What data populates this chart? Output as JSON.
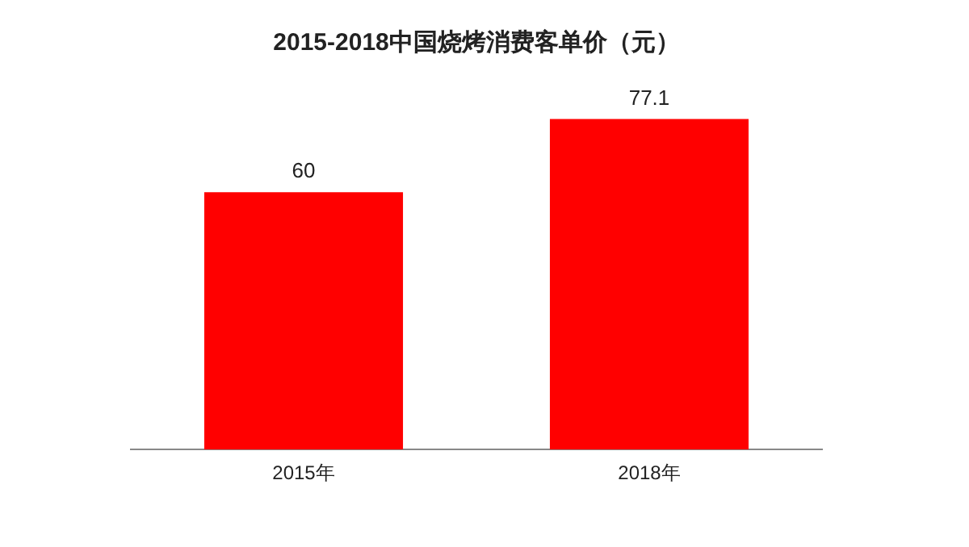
{
  "chart_data": {
    "type": "bar",
    "title": "2015-2018中国烧烤消费客单价（元）",
    "categories": [
      "2015年",
      "2018年"
    ],
    "values": [
      60,
      77.1
    ],
    "color": "#ff0000",
    "data_labels": true,
    "grid": false,
    "legend": false
  }
}
